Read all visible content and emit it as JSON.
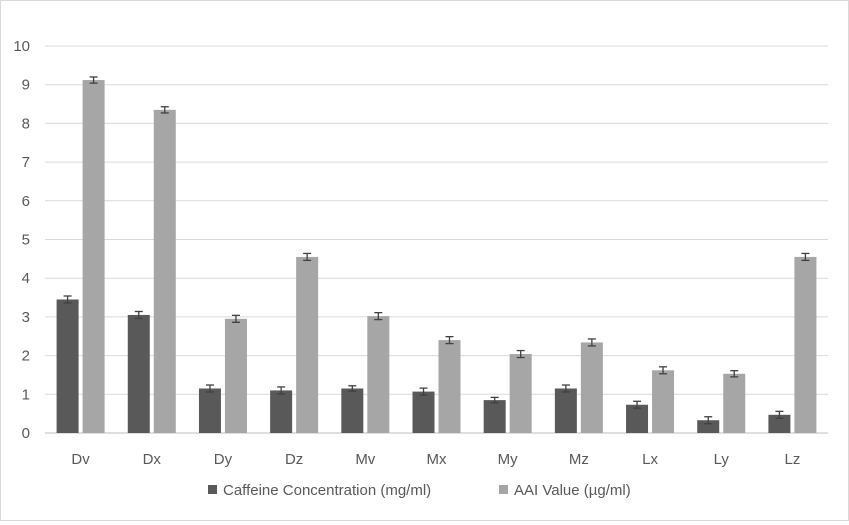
{
  "chart_data": {
    "type": "bar",
    "title": "",
    "xlabel": "",
    "ylabel": "",
    "ylim": [
      0,
      10
    ],
    "yticks": [
      "0",
      "1",
      "2",
      "3",
      "4",
      "5",
      "6",
      "7",
      "8",
      "9",
      "10"
    ],
    "grid": true,
    "legend_position": "bottom",
    "categories": [
      "Dv",
      "Dx",
      "Dy",
      "Dz",
      "Mv",
      "Mx",
      "My",
      "Mz",
      "Lx",
      "Ly",
      "Lz"
    ],
    "series": [
      {
        "name": "Caffeine Concentration (mg/ml)",
        "color": "#595959",
        "values": [
          3.45,
          3.05,
          1.15,
          1.1,
          1.15,
          1.07,
          0.85,
          1.15,
          0.73,
          0.33,
          0.47
        ],
        "errors": [
          0.09,
          0.09,
          0.09,
          0.09,
          0.07,
          0.09,
          0.07,
          0.09,
          0.09,
          0.09,
          0.09
        ]
      },
      {
        "name": "AAI Value (µg/ml)",
        "color": "#a6a6a6",
        "values": [
          9.12,
          8.35,
          2.95,
          4.55,
          3.02,
          2.4,
          2.04,
          2.34,
          1.62,
          1.53,
          4.55
        ],
        "errors": [
          0.08,
          0.08,
          0.09,
          0.09,
          0.09,
          0.09,
          0.09,
          0.09,
          0.09,
          0.08,
          0.09
        ]
      }
    ]
  }
}
